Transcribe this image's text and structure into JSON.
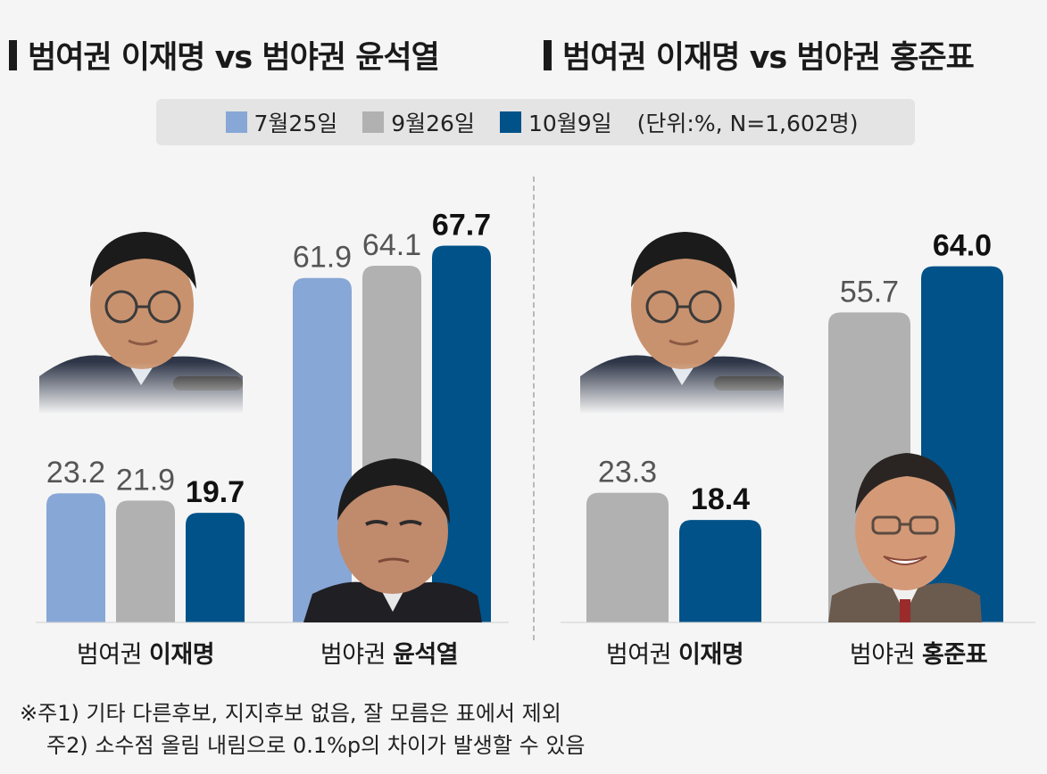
{
  "titles": {
    "left": "범여권 이재명 vs 범야권 윤석열",
    "right": "범여권 이재명 vs 범야권 홍준표"
  },
  "legend": {
    "items": [
      {
        "label": "7월25일",
        "color": "#87a7d6"
      },
      {
        "label": "9월26일",
        "color": "#b1b1b1"
      },
      {
        "label": "10월9일",
        "color": "#005289"
      }
    ],
    "unit": "(단위:%, N=1,602명)"
  },
  "chart_data": [
    {
      "type": "bar",
      "title": "범여권 이재명 vs 범야권 윤석열",
      "categories": [
        {
          "prefix": "범여권",
          "name": "이재명"
        },
        {
          "prefix": "범야권",
          "name": "윤석열"
        }
      ],
      "series": [
        {
          "name": "7월25일",
          "values": [
            23.2,
            61.9
          ]
        },
        {
          "name": "9월26일",
          "values": [
            21.9,
            64.1
          ]
        },
        {
          "name": "10월9일",
          "values": [
            19.7,
            67.7
          ]
        }
      ]
    },
    {
      "type": "bar",
      "title": "범여권 이재명 vs 범야권 홍준표",
      "categories": [
        {
          "prefix": "범여권",
          "name": "이재명"
        },
        {
          "prefix": "범야권",
          "name": "홍준표"
        }
      ],
      "series": [
        {
          "name": "9월26일",
          "values": [
            23.3,
            55.7
          ]
        },
        {
          "name": "10월9일",
          "values": [
            18.4,
            64.0
          ]
        }
      ]
    }
  ],
  "notes": [
    "※주1) 기타 다른후보, 지지후보 없음, 잘 모름은 표에서 제외",
    "주2) 소수점 올림 내림으로 0.1%p의 차이가 발생할 수 있음"
  ]
}
